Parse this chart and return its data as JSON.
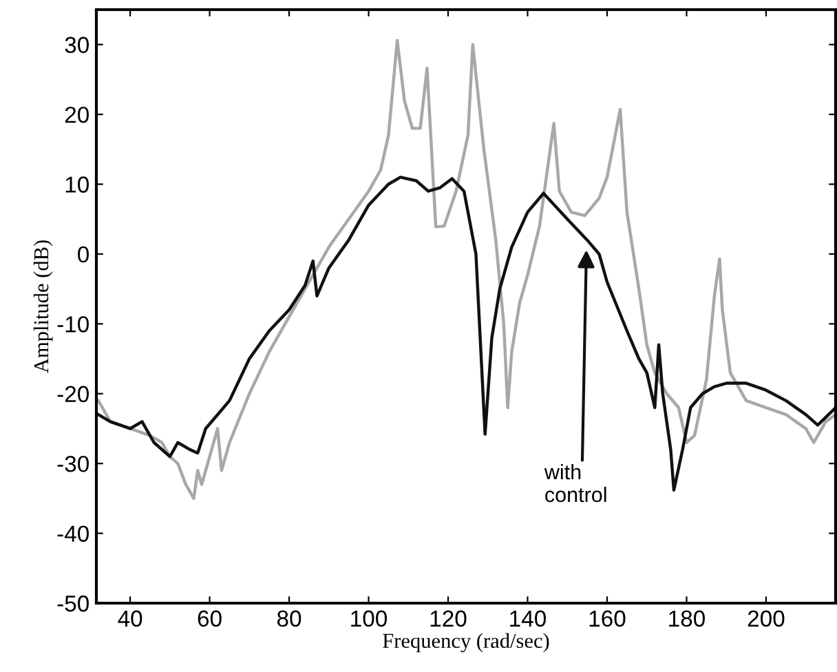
{
  "chart_data": {
    "type": "line",
    "xlabel": "Frequency (rad/sec)",
    "ylabel": "Amplitude (dB)",
    "xlim": [
      31.5,
      217.5
    ],
    "ylim": [
      -50,
      35
    ],
    "xticks": [
      40,
      60,
      80,
      100,
      120,
      140,
      160,
      180,
      200
    ],
    "yticks": [
      -50,
      -40,
      -30,
      -20,
      -10,
      0,
      10,
      20,
      30
    ],
    "grid": false,
    "legend": false,
    "series": [
      {
        "color": "#a8a8a8",
        "x": [
          32,
          35,
          40,
          45,
          48,
          50,
          52,
          54,
          56,
          57,
          58,
          60,
          62,
          63,
          65,
          70,
          75,
          80,
          85,
          90,
          95,
          100,
          103,
          105,
          107.2,
          109,
          111,
          113,
          114.7,
          116.9,
          119,
          122,
          125,
          126.2,
          129,
          132,
          134,
          135,
          136,
          138,
          140,
          143,
          146.6,
          148,
          151,
          154.4,
          158,
          160,
          163.3,
          165,
          168,
          170,
          172,
          175,
          178,
          180,
          182,
          185,
          187,
          188.3,
          189,
          191,
          195,
          200,
          205,
          210,
          212,
          215,
          217.5
        ],
        "values": [
          -21,
          -24,
          -25,
          -26,
          -27,
          -29,
          -30,
          -33,
          -35,
          -31,
          -33,
          -29,
          -25,
          -31,
          -27,
          -20,
          -14,
          -9,
          -4,
          1,
          5,
          9,
          12,
          17,
          30.6,
          22,
          18,
          18,
          26.6,
          3.9,
          4,
          9,
          17,
          30,
          15,
          2,
          -10,
          -22,
          -14,
          -7,
          -3,
          4,
          18.7,
          9,
          6,
          5.5,
          8,
          11,
          20.7,
          6,
          -5,
          -13,
          -17,
          -20,
          -22,
          -27,
          -26,
          -18,
          -6,
          -0.7,
          -8,
          -17,
          -21,
          -22,
          -23,
          -25,
          -27,
          -24,
          -23
        ]
      },
      {
        "color": "#111111",
        "x": [
          32,
          35,
          40,
          43,
          46,
          50,
          52,
          55,
          57,
          59,
          62,
          65,
          70,
          75,
          80,
          84,
          86,
          87,
          90,
          95,
          100,
          105,
          108,
          112,
          115,
          118,
          121,
          124,
          127,
          129.3,
          131,
          133,
          136,
          140,
          144,
          150,
          155,
          158,
          160,
          165,
          168,
          170,
          172,
          173,
          174,
          176,
          176.8,
          179,
          181,
          184,
          187,
          190,
          195,
          200,
          205,
          210,
          213,
          217.5
        ],
        "values": [
          -23,
          -24,
          -25,
          -24,
          -27,
          -29,
          -27,
          -28,
          -28.5,
          -25,
          -23,
          -21,
          -15,
          -11,
          -8,
          -4.5,
          -1,
          -6,
          -2,
          2,
          7,
          10,
          11,
          10.5,
          9,
          9.5,
          10.8,
          9,
          0,
          -25.8,
          -12,
          -5,
          1,
          6,
          8.7,
          5,
          2,
          0,
          -4,
          -11,
          -15,
          -17,
          -22,
          -13,
          -20,
          -28,
          -33.8,
          -28,
          -22,
          -20,
          -19,
          -18.5,
          -18.5,
          -19.5,
          -21,
          -23,
          -24.5,
          -22
        ]
      }
    ],
    "annotations": [
      {
        "text": "with\ncontrol",
        "x": 154.8,
        "y": 0.6
      }
    ]
  }
}
